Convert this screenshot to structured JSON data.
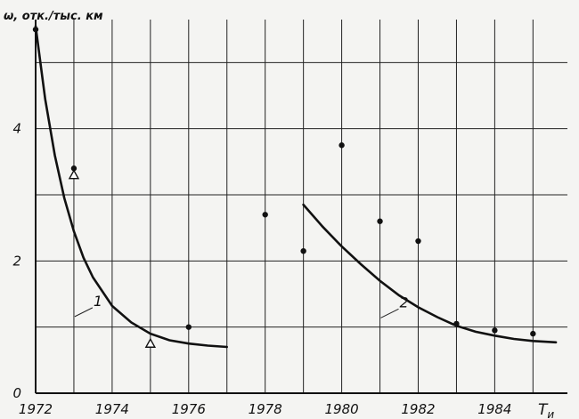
{
  "chart_data": {
    "type": "scatter",
    "title": "",
    "ylabel": "ω, отк./тыс. км",
    "xlabel": "Т",
    "xlabel_sub": "и",
    "xlim": [
      1972,
      1985.9
    ],
    "ylim": [
      0,
      5.65
    ],
    "grid": true,
    "x_ticks": [
      1972,
      1974,
      1976,
      1978,
      1980,
      1982,
      1984
    ],
    "x_tick_labels": [
      "1972",
      "1974",
      "1976",
      "1978",
      "1980",
      "1982",
      "1984"
    ],
    "y_ticks": [
      0,
      2,
      4
    ],
    "y_tick_labels": [
      "0",
      "2",
      "4"
    ],
    "series": [
      {
        "marker": "dot",
        "x": [
          1972,
          1973,
          1976,
          1978,
          1979,
          1980,
          1981,
          1982,
          1983,
          1984,
          1985
        ],
        "y": [
          5.5,
          3.4,
          1.0,
          2.7,
          2.15,
          3.75,
          2.6,
          2.3,
          1.05,
          0.95,
          0.9
        ]
      },
      {
        "marker": "triangle",
        "x": [
          1973,
          1975
        ],
        "y": [
          3.3,
          0.75
        ]
      }
    ],
    "curves": [
      {
        "label": "1",
        "x": [
          1972,
          1972.25,
          1972.5,
          1972.75,
          1973,
          1973.25,
          1973.5,
          1974,
          1974.5,
          1975,
          1975.5,
          1976,
          1976.5,
          1977
        ],
        "y": [
          5.55,
          4.45,
          3.6,
          2.95,
          2.45,
          2.05,
          1.75,
          1.32,
          1.07,
          0.9,
          0.8,
          0.75,
          0.72,
          0.7
        ]
      },
      {
        "label": "2",
        "x": [
          1979,
          1979.5,
          1980,
          1980.5,
          1981,
          1981.5,
          1982,
          1982.5,
          1983,
          1983.5,
          1984,
          1984.5,
          1985,
          1985.6
        ],
        "y": [
          2.85,
          2.52,
          2.22,
          1.95,
          1.7,
          1.48,
          1.3,
          1.15,
          1.02,
          0.93,
          0.87,
          0.82,
          0.79,
          0.77
        ]
      }
    ]
  }
}
